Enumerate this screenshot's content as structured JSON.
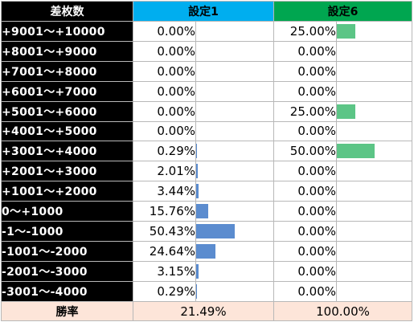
{
  "header": {
    "col0": "差枚数",
    "col1": "設定1",
    "col2": "設定6"
  },
  "colors": {
    "setting1_bar": "#5b8ccf",
    "setting6_bar": "#5cc586",
    "header1": "#00aeef",
    "header2": "#00a650",
    "footer_bg": "#fde5d9"
  },
  "rows": [
    {
      "label": "+9001～+10000",
      "s1": "0.00%",
      "s1_value": 0.0,
      "s6": "25.00%",
      "s6_value": 25.0
    },
    {
      "label": "+8001～+9000",
      "s1": "0.00%",
      "s1_value": 0.0,
      "s6": "0.00%",
      "s6_value": 0.0
    },
    {
      "label": "+7001～+8000",
      "s1": "0.00%",
      "s1_value": 0.0,
      "s6": "0.00%",
      "s6_value": 0.0
    },
    {
      "label": "+6001～+7000",
      "s1": "0.00%",
      "s1_value": 0.0,
      "s6": "0.00%",
      "s6_value": 0.0
    },
    {
      "label": "+5001～+6000",
      "s1": "0.00%",
      "s1_value": 0.0,
      "s6": "25.00%",
      "s6_value": 25.0
    },
    {
      "label": "+4001～+5000",
      "s1": "0.00%",
      "s1_value": 0.0,
      "s6": "0.00%",
      "s6_value": 0.0
    },
    {
      "label": "+3001～+4000",
      "s1": "0.29%",
      "s1_value": 0.29,
      "s6": "50.00%",
      "s6_value": 50.0
    },
    {
      "label": "+2001～+3000",
      "s1": "2.01%",
      "s1_value": 2.01,
      "s6": "0.00%",
      "s6_value": 0.0
    },
    {
      "label": "+1001～+2000",
      "s1": "3.44%",
      "s1_value": 3.44,
      "s6": "0.00%",
      "s6_value": 0.0
    },
    {
      "label": "0～+1000",
      "s1": "15.76%",
      "s1_value": 15.76,
      "s6": "0.00%",
      "s6_value": 0.0
    },
    {
      "label": "-1～-1000",
      "s1": "50.43%",
      "s1_value": 50.43,
      "s6": "0.00%",
      "s6_value": 0.0
    },
    {
      "label": "-1001～-2000",
      "s1": "24.64%",
      "s1_value": 24.64,
      "s6": "0.00%",
      "s6_value": 0.0
    },
    {
      "label": "-2001～-3000",
      "s1": "3.15%",
      "s1_value": 3.15,
      "s6": "0.00%",
      "s6_value": 0.0
    },
    {
      "label": "-3001～-4000",
      "s1": "0.29%",
      "s1_value": 0.29,
      "s6": "0.00%",
      "s6_value": 0.0
    }
  ],
  "footer": {
    "label": "勝率",
    "s1": "21.49%",
    "s6": "100.00%"
  }
}
